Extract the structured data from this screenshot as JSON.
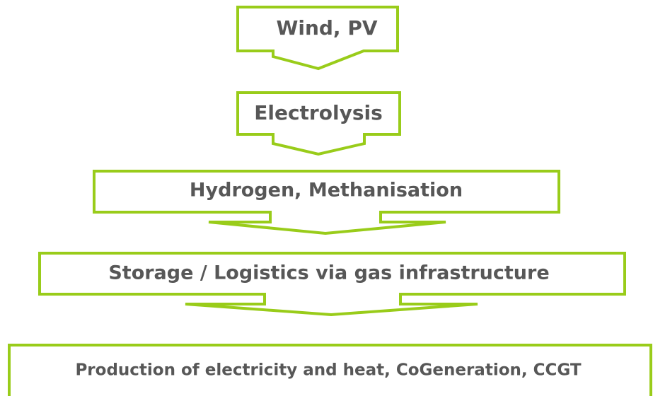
{
  "nodes": [
    {
      "label": "Wind, PV"
    },
    {
      "label": "Electrolysis"
    },
    {
      "label": "Hydrogen, Methanisation"
    },
    {
      "label": "Storage / Logistics via gas infrastructure"
    },
    {
      "label": "Production of electricity and heat, CoGeneration, CCGT"
    }
  ]
}
